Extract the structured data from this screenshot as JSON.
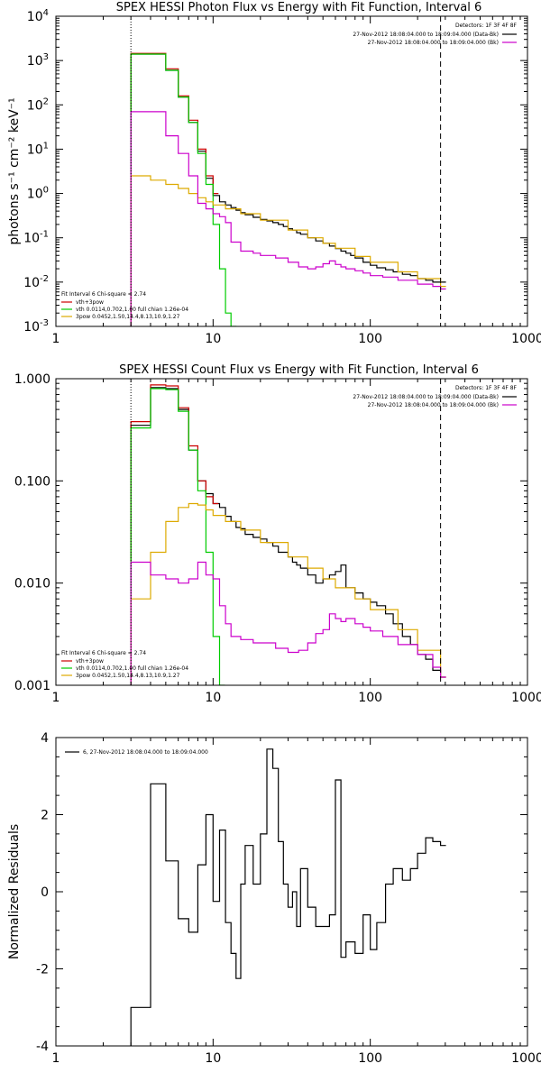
{
  "chart_data": [
    {
      "type": "line",
      "title": "SPEX HESSI Photon Flux vs Energy with Fit Function, Interval 6",
      "ylabel": "photons s⁻¹ cm⁻² keV⁻¹",
      "xscale": "log",
      "yscale": "log",
      "xlim": [
        1,
        1000
      ],
      "ylim": [
        0.001,
        10000
      ],
      "xticks": [
        "1",
        "10",
        "100",
        "1000"
      ],
      "yticks": [
        "10-3",
        "10-2",
        "10-1",
        "100",
        "101",
        "102",
        "103",
        "104"
      ],
      "vlines": [
        {
          "x": 3,
          "style": "dotted"
        },
        {
          "x": 280,
          "style": "dashed"
        }
      ],
      "legend_top": {
        "title": "Detectors: 1F 3F 4F 8F",
        "entries": [
          {
            "label": "27-Nov-2012 18:08:04.000 to 18:09:04.000 (Data-Bk)",
            "color": "#000000"
          },
          {
            "label": "27-Nov-2012 18:08:04.000 to 18:09:04.000 (Bk)",
            "color": "#cc00cc"
          }
        ]
      },
      "legend_bottom": {
        "title": "Fit Interval 6   Chi-square = 2.74",
        "entries": [
          {
            "label": "vth+3pow",
            "color": "#cc0000"
          },
          {
            "label": "vth 0.0114,0.702,1.00  full chian 1.26e-04",
            "color": "#00cc00"
          },
          {
            "label": "3pow 0.0452,1.50,14.4,8.13,10.9,1.27",
            "color": "#ddaa00"
          }
        ]
      },
      "series": [
        {
          "name": "Data-Bk",
          "color": "#000000",
          "x": [
            3,
            4,
            5,
            6,
            7,
            8,
            9,
            10,
            11,
            12,
            13,
            14,
            15,
            16,
            18,
            20,
            22,
            24,
            26,
            28,
            30,
            32,
            34,
            36,
            40,
            45,
            50,
            55,
            60,
            65,
            70,
            75,
            80,
            90,
            100,
            110,
            125,
            140,
            160,
            180,
            200,
            225,
            250,
            280
          ],
          "y": [
            1400,
            1400,
            600,
            150,
            40,
            9,
            2.2,
            0.9,
            0.65,
            0.55,
            0.48,
            0.42,
            0.37,
            0.33,
            0.29,
            0.26,
            0.24,
            0.22,
            0.2,
            0.18,
            0.16,
            0.15,
            0.13,
            0.12,
            0.1,
            0.085,
            0.075,
            0.065,
            0.057,
            0.05,
            0.045,
            0.04,
            0.035,
            0.028,
            0.024,
            0.021,
            0.019,
            0.017,
            0.015,
            0.014,
            0.012,
            0.011,
            0.01,
            0.01
          ]
        },
        {
          "name": "vth+3pow",
          "color": "#cc0000",
          "x": [
            3,
            4,
            5,
            6,
            7,
            8,
            9,
            10
          ],
          "y": [
            1450,
            1450,
            650,
            160,
            45,
            10,
            2.5,
            1.0
          ]
        },
        {
          "name": "vth",
          "color": "#00cc00",
          "x": [
            3,
            4,
            5,
            6,
            7,
            8,
            9,
            10,
            11,
            12,
            13
          ],
          "y": [
            1400,
            1400,
            600,
            150,
            40,
            8,
            1.6,
            0.2,
            0.02,
            0.002,
            0.001
          ]
        },
        {
          "name": "3pow",
          "color": "#ddaa00",
          "x": [
            3,
            4,
            5,
            6,
            7,
            8,
            9,
            10,
            12,
            15,
            20,
            30,
            40,
            50,
            60,
            80,
            100,
            150,
            200,
            280
          ],
          "y": [
            2.5,
            2.0,
            1.6,
            1.3,
            1.0,
            0.8,
            0.65,
            0.55,
            0.45,
            0.35,
            0.25,
            0.15,
            0.1,
            0.075,
            0.058,
            0.038,
            0.028,
            0.017,
            0.012,
            0.008
          ]
        },
        {
          "name": "Bk",
          "color": "#cc00cc",
          "x": [
            3,
            4,
            5,
            6,
            7,
            8,
            9,
            10,
            11,
            12,
            13,
            15,
            18,
            20,
            25,
            30,
            35,
            40,
            45,
            50,
            55,
            60,
            65,
            70,
            80,
            90,
            100,
            120,
            150,
            200,
            250,
            280
          ],
          "y": [
            70,
            70,
            20,
            8,
            2.5,
            0.6,
            0.45,
            0.35,
            0.3,
            0.22,
            0.08,
            0.05,
            0.045,
            0.04,
            0.035,
            0.028,
            0.022,
            0.02,
            0.022,
            0.026,
            0.03,
            0.025,
            0.022,
            0.02,
            0.018,
            0.016,
            0.014,
            0.013,
            0.011,
            0.009,
            0.008,
            0.007
          ]
        }
      ]
    },
    {
      "type": "line",
      "title": "SPEX HESSI Count Flux vs Energy with Fit Function, Interval 6",
      "xscale": "log",
      "yscale": "log",
      "xlim": [
        1,
        1000
      ],
      "ylim": [
        0.001,
        1.0
      ],
      "xticks": [
        "1",
        "10",
        "100",
        "1000"
      ],
      "yticks": [
        "0.001",
        "0.010",
        "0.100",
        "1.000"
      ],
      "vlines": [
        {
          "x": 3,
          "style": "dotted"
        },
        {
          "x": 280,
          "style": "dashed"
        }
      ],
      "legend_top": {
        "title": "Detectors: 1F 3F 4F 8F",
        "entries": [
          {
            "label": "27-Nov-2012 18:08:04.000 to 18:09:04.000 (Data-Bk)",
            "color": "#000000"
          },
          {
            "label": "27-Nov-2012 18:08:04.000 to 18:09:04.000 (Bk)",
            "color": "#cc00cc"
          }
        ]
      },
      "legend_bottom": {
        "title": "Fit Interval 6   Chi-square = 2.74",
        "entries": [
          {
            "label": "vth+3pow",
            "color": "#cc0000"
          },
          {
            "label": "vth 0.0114,0.702,1.00  full chian 1.26e-04",
            "color": "#00cc00"
          },
          {
            "label": "3pow 0.0452,1.50,14.4,8.13,10.9,1.27",
            "color": "#ddaa00"
          }
        ]
      },
      "series": [
        {
          "name": "Data-Bk",
          "color": "#000000",
          "x": [
            3,
            4,
            5,
            6,
            7,
            8,
            9,
            10,
            11,
            12,
            13,
            14,
            15,
            16,
            18,
            20,
            22,
            24,
            26,
            28,
            30,
            32,
            34,
            36,
            40,
            45,
            50,
            55,
            60,
            65,
            70,
            80,
            90,
            100,
            110,
            125,
            140,
            160,
            180,
            200,
            225,
            250,
            280
          ],
          "y": [
            0.35,
            0.82,
            0.8,
            0.5,
            0.2,
            0.1,
            0.075,
            0.06,
            0.055,
            0.045,
            0.04,
            0.035,
            0.034,
            0.03,
            0.028,
            0.027,
            0.025,
            0.023,
            0.02,
            0.02,
            0.018,
            0.016,
            0.015,
            0.014,
            0.012,
            0.01,
            0.011,
            0.012,
            0.013,
            0.015,
            0.009,
            0.008,
            0.007,
            0.0065,
            0.006,
            0.005,
            0.004,
            0.003,
            0.0025,
            0.002,
            0.0018,
            0.0014,
            0.0012
          ]
        },
        {
          "name": "vth+3pow",
          "color": "#cc0000",
          "x": [
            3,
            4,
            5,
            6,
            7,
            8,
            9,
            10
          ],
          "y": [
            0.38,
            0.87,
            0.85,
            0.52,
            0.22,
            0.1,
            0.07,
            0.06
          ]
        },
        {
          "name": "vth",
          "color": "#00cc00",
          "x": [
            3,
            4,
            5,
            6,
            7,
            8,
            9,
            10,
            11
          ],
          "y": [
            0.33,
            0.8,
            0.78,
            0.48,
            0.2,
            0.08,
            0.02,
            0.003,
            0.001
          ]
        },
        {
          "name": "3pow",
          "color": "#ddaa00",
          "x": [
            3,
            4,
            5,
            6,
            7,
            8,
            9,
            10,
            12,
            15,
            20,
            30,
            40,
            50,
            60,
            80,
            100,
            150,
            200,
            280
          ],
          "y": [
            0.007,
            0.02,
            0.04,
            0.055,
            0.06,
            0.058,
            0.052,
            0.046,
            0.04,
            0.033,
            0.025,
            0.018,
            0.014,
            0.011,
            0.009,
            0.007,
            0.0055,
            0.0035,
            0.0022,
            0.0012
          ]
        },
        {
          "name": "Bk",
          "color": "#cc00cc",
          "x": [
            3,
            4,
            5,
            6,
            7,
            8,
            9,
            10,
            11,
            12,
            13,
            15,
            18,
            20,
            25,
            30,
            35,
            40,
            45,
            50,
            55,
            60,
            65,
            70,
            80,
            90,
            100,
            120,
            150,
            200,
            250,
            280
          ],
          "y": [
            0.016,
            0.012,
            0.011,
            0.01,
            0.011,
            0.016,
            0.012,
            0.011,
            0.006,
            0.004,
            0.003,
            0.0028,
            0.0026,
            0.0026,
            0.0023,
            0.0021,
            0.0022,
            0.0026,
            0.0032,
            0.0035,
            0.005,
            0.0045,
            0.0042,
            0.0045,
            0.004,
            0.0037,
            0.0034,
            0.003,
            0.0025,
            0.002,
            0.0015,
            0.0012
          ]
        }
      ]
    },
    {
      "type": "line",
      "ylabel": "Normalized Residuals",
      "xscale": "log",
      "xlim": [
        1,
        1000
      ],
      "ylim": [
        -4,
        4
      ],
      "xticks": [
        "1",
        "10",
        "100",
        "1000"
      ],
      "yticks": [
        "-4",
        "-2",
        "0",
        "2",
        "4"
      ],
      "legend": [
        {
          "label": "6, 27-Nov-2012 18:08:04.000 to 18:09:04.000",
          "color": "#000000"
        }
      ],
      "series": [
        {
          "name": "residuals",
          "color": "#000000",
          "x": [
            3,
            4,
            5,
            6,
            7,
            8,
            9,
            10,
            11,
            12,
            13,
            14,
            15,
            16,
            18,
            20,
            22,
            24,
            26,
            28,
            30,
            32,
            34,
            36,
            40,
            45,
            50,
            55,
            60,
            65,
            70,
            80,
            90,
            100,
            110,
            125,
            140,
            160,
            180,
            200,
            225,
            250,
            280
          ],
          "y": [
            -3.0,
            2.8,
            0.8,
            -0.7,
            -1.05,
            0.7,
            2.0,
            -0.25,
            1.6,
            -0.8,
            -1.6,
            -2.25,
            0.2,
            1.2,
            0.2,
            1.5,
            3.7,
            3.2,
            1.3,
            0.2,
            -0.4,
            0.0,
            -0.9,
            0.6,
            -0.4,
            -0.9,
            -0.9,
            -0.6,
            2.9,
            -1.7,
            -1.3,
            -1.6,
            -0.6,
            -1.5,
            -0.8,
            0.2,
            0.6,
            0.3,
            0.6,
            1.0,
            1.4,
            1.3,
            1.2
          ]
        }
      ]
    }
  ]
}
